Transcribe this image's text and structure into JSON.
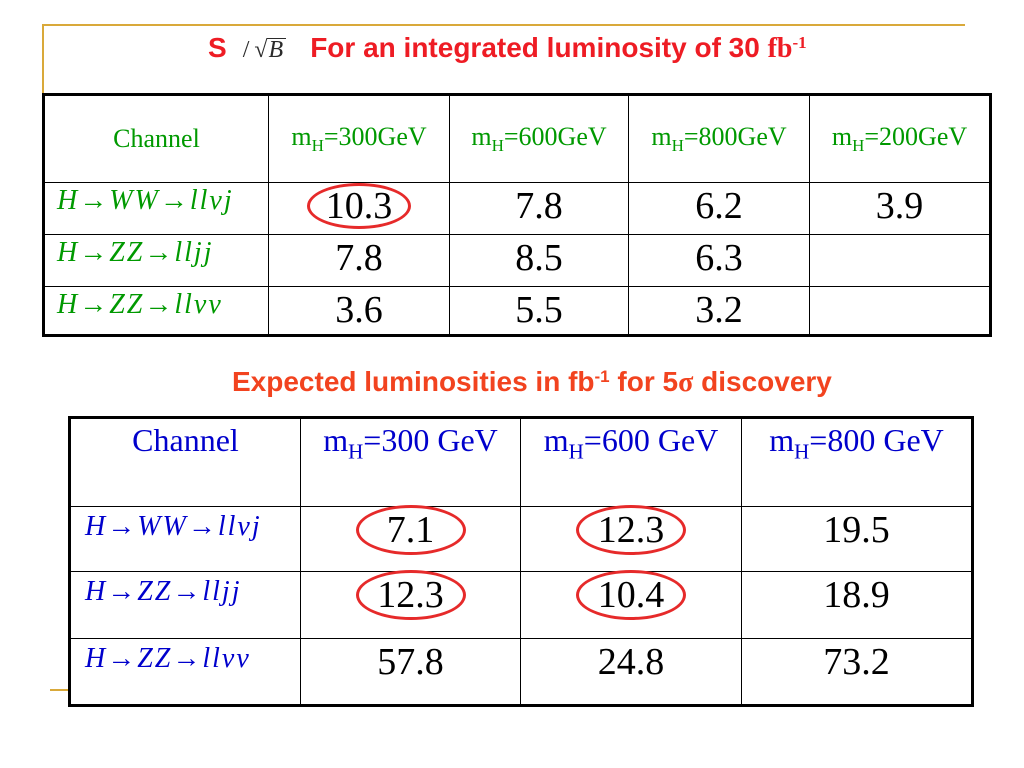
{
  "colors": {
    "rule": "#D9A93A",
    "title_red": "#EE1C24",
    "ratio_dark": "#2B2B2B",
    "table1_text": "#009900",
    "subtitle": "#F2431F",
    "table2_text": "#0000CC",
    "value": "#000000",
    "highlight": "#E62A2A"
  },
  "title": {
    "s": "S",
    "slash": "/",
    "radical": "√",
    "radicand": "B",
    "text": "For an integrated luminosity of 30",
    "unit": "fb",
    "unit_exp": "-1"
  },
  "table1": {
    "header": {
      "channel": "Channel",
      "masses": [
        {
          "m": "m",
          "sub": "H",
          "value": "=300GeV"
        },
        {
          "m": "m",
          "sub": "H",
          "value": "=600GeV"
        },
        {
          "m": "m",
          "sub": "H",
          "value": "=800GeV"
        },
        {
          "m": "m",
          "sub": "H",
          "value": "=200GeV"
        }
      ]
    },
    "rows": [
      {
        "channel": "H→WW→llvj",
        "values": [
          "10.3",
          "7.8",
          "6.2",
          "3.9"
        ],
        "circled": [
          true,
          false,
          false,
          false
        ]
      },
      {
        "channel": "H→ZZ→lljj",
        "values": [
          "7.8",
          "8.5",
          "6.3",
          ""
        ],
        "circled": [
          false,
          false,
          false,
          false
        ]
      },
      {
        "channel": "H→ZZ→llvv",
        "values": [
          "3.6",
          "5.5",
          "3.2",
          ""
        ],
        "circled": [
          false,
          false,
          false,
          false
        ]
      }
    ]
  },
  "subtitle": {
    "before": "Expected luminosities in fb",
    "unit_exp": "-1",
    "middle": "for 5",
    "sigma": "σ",
    "after": "discovery"
  },
  "table2": {
    "header": {
      "channel": "Channel",
      "masses": [
        {
          "m": "m",
          "sub": "H",
          "value": "=300 GeV"
        },
        {
          "m": "m",
          "sub": "H",
          "value": "=600 GeV"
        },
        {
          "m": "m",
          "sub": "H",
          "value": "=800 GeV"
        }
      ]
    },
    "rows": [
      {
        "channel": "H→WW→llvj",
        "values": [
          "7.1",
          "12.3",
          "19.5"
        ],
        "circled": [
          true,
          true,
          false
        ]
      },
      {
        "channel": "H→ZZ→lljj",
        "values": [
          "12.3",
          "10.4",
          "18.9"
        ],
        "circled": [
          true,
          true,
          false
        ]
      },
      {
        "channel": "H→ZZ→llvv",
        "values": [
          "57.8",
          "24.8",
          "73.2"
        ],
        "circled": [
          false,
          false,
          false
        ]
      }
    ]
  }
}
